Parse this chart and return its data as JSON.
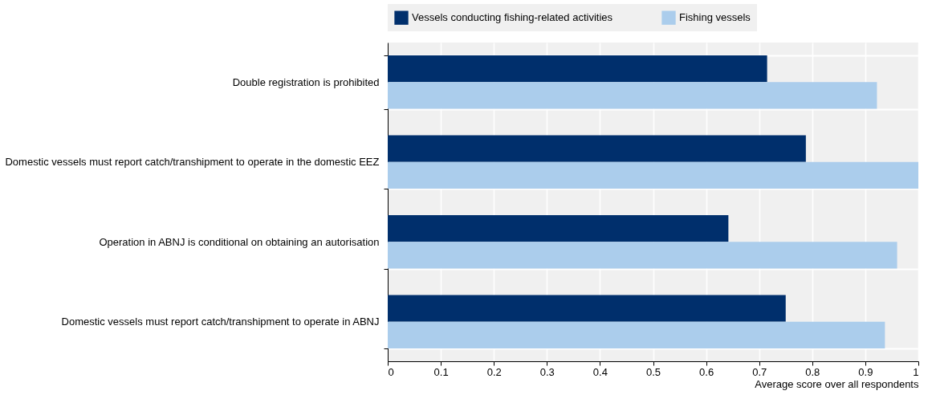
{
  "chart_data": {
    "type": "bar",
    "orientation": "horizontal",
    "xlabel": "Average score over all respondents",
    "categories": [
      "Double registration is prohibited",
      "Domestic vessels must report catch/transhipment to operate in the domestic EEZ",
      "Operation in ABNJ is conditional on obtaining an autorisation",
      "Domestic vessels must report catch/transhipment to operate in ABNJ"
    ],
    "series": [
      {
        "name": "Vessels conducting fishing-related activities",
        "color": "#002f6c",
        "values": [
          0.715,
          0.788,
          0.642,
          0.75
        ]
      },
      {
        "name": "Fishing vessels",
        "color": "#abcdec",
        "values": [
          0.922,
          1.0,
          0.96,
          0.937
        ]
      }
    ],
    "xlim": [
      0,
      1
    ],
    "xticks": [
      0,
      0.1,
      0.2,
      0.3,
      0.4,
      0.5,
      0.6,
      0.7,
      0.8,
      0.9,
      1
    ],
    "grid": true,
    "legend": "top"
  }
}
